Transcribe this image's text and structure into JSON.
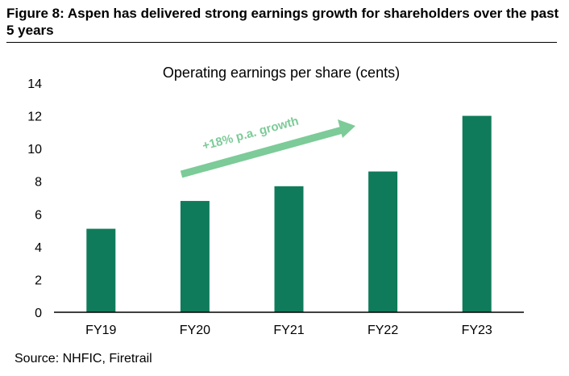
{
  "figure": {
    "title": "Figure 8: Aspen has delivered strong earnings growth for shareholders over the past 5 years",
    "source": "Source: NHFIC, Firetrail"
  },
  "colors": {
    "bar": "#0f7b5a",
    "arrow": "#7ccb98",
    "axis": "#000000"
  },
  "chart_data": {
    "type": "bar",
    "title": "Operating earnings per share (cents)",
    "xlabel": "",
    "ylabel": "",
    "categories": [
      "FY19",
      "FY20",
      "FY21",
      "FY22",
      "FY23"
    ],
    "values": [
      5.1,
      6.8,
      7.7,
      8.6,
      12.0
    ],
    "ylim": [
      0,
      14
    ],
    "yticks": [
      0,
      2,
      4,
      6,
      8,
      10,
      12,
      14
    ],
    "grid": false,
    "legend": "none",
    "annotation": {
      "text": "+18% p.a. growth",
      "shape": "arrow"
    }
  }
}
